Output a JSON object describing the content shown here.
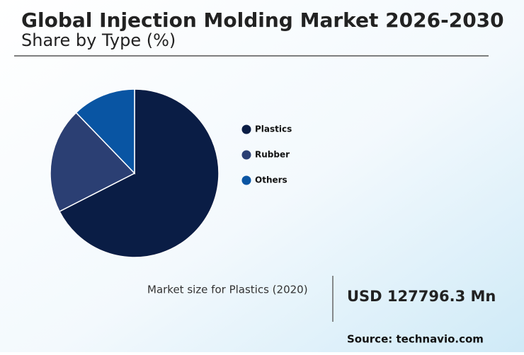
{
  "chart_data": {
    "type": "pie",
    "title": "Global Injection Molding Market 2026-2030",
    "subtitle": "Share by Type (%)",
    "categories": [
      "Plastics",
      "Rubber",
      "Others"
    ],
    "values": [
      67.5,
      20.3,
      12.2
    ],
    "colors": [
      "#0a1d45",
      "#2b3f73",
      "#0955a3"
    ],
    "annotations": [
      "Market size for Plastics (2020)",
      "USD 127796.3 Mn",
      "Source: technavio.com"
    ]
  }
}
